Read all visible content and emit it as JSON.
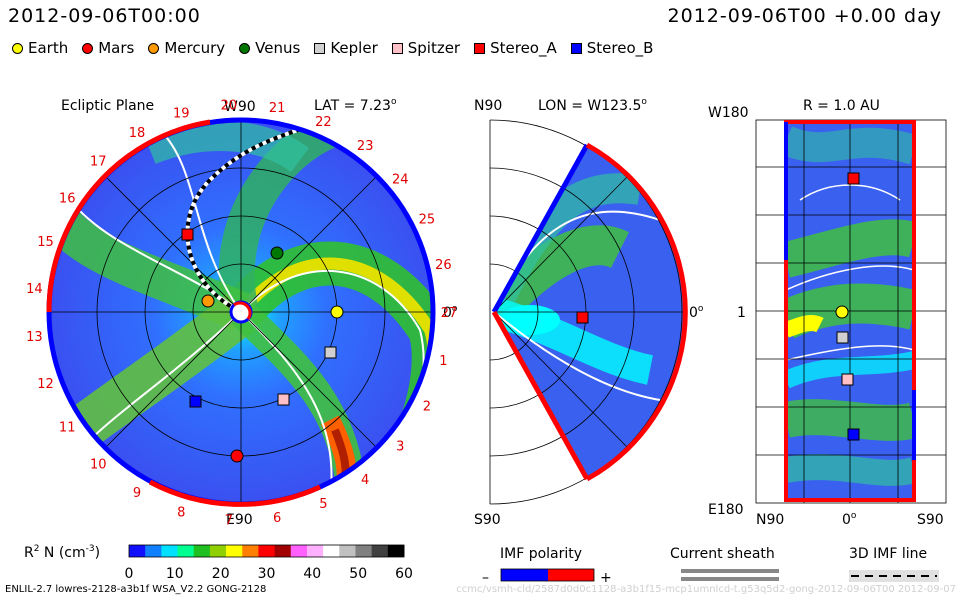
{
  "header": {
    "timestamp_left": "2012-09-06T00:00",
    "timestamp_right": "2012-09-06T00 +0.00 day"
  },
  "legend": [
    {
      "label": "Earth",
      "color": "#ffff00",
      "shape": "circle"
    },
    {
      "label": "Mars",
      "color": "#ff0000",
      "shape": "circle"
    },
    {
      "label": "Mercury",
      "color": "#ff9900",
      "shape": "circle"
    },
    {
      "label": "Venus",
      "color": "#007700",
      "shape": "circle"
    },
    {
      "label": "Kepler",
      "color": "#d0d0d0",
      "shape": "square"
    },
    {
      "label": "Spitzer",
      "color": "#ffc0c8",
      "shape": "square"
    },
    {
      "label": "Stereo_A",
      "color": "#ff0000",
      "shape": "square"
    },
    {
      "label": "Stereo_B",
      "color": "#0000ff",
      "shape": "square"
    }
  ],
  "panels": {
    "ecliptic": {
      "title": "Ecliptic Plane",
      "lat_label": "LAT = 7.23",
      "degree_mark": "o",
      "top_label": "W90",
      "bottom_label": "E90",
      "right_label": "0",
      "rotation_numbers": [
        "1",
        "2",
        "3",
        "4",
        "5",
        "6",
        "7",
        "8",
        "9",
        "10",
        "11",
        "12",
        "13",
        "14",
        "15",
        "16",
        "17",
        "18",
        "19",
        "20",
        "21",
        "22",
        "23",
        "24",
        "25",
        "26",
        "27"
      ]
    },
    "meridional": {
      "lon_label": "LON = W123.5",
      "top_label": "N90",
      "bottom_label": "S90",
      "right_label": "0"
    },
    "radial": {
      "r_label": "R = 1.0 AU",
      "top_left_label": "W180",
      "bottom_left_label": "E180",
      "mid_left_label": "1",
      "bottom_axis": [
        "N90",
        "0",
        "S90"
      ]
    }
  },
  "colorbar": {
    "label": "R  N (cm  )",
    "label_sup1": "2",
    "label_sup2": "-3",
    "ticks": [
      "0",
      "10",
      "20",
      "30",
      "40",
      "50",
      "60"
    ],
    "colors": [
      "#1010ff",
      "#1080ff",
      "#00e0ff",
      "#00ff90",
      "#20c020",
      "#90d000",
      "#ffff00",
      "#ff8000",
      "#ff0000",
      "#a00000",
      "#ff60ff",
      "#ffb0ff",
      "#ffffff",
      "#c0c0c0",
      "#808080",
      "#404040",
      "#000000"
    ]
  },
  "imf_polarity": {
    "label": "IMF polarity",
    "minus": "–",
    "plus": "+",
    "negative_color": "#0000ff",
    "positive_color": "#ff0000"
  },
  "current_sheath": {
    "label": "Current sheath"
  },
  "imf_line": {
    "label": "3D IMF line"
  },
  "footer": {
    "left": "ENLIL-2.7 lowres-2128-a3b1f WSA_V2.2 GONG-2128",
    "right": "ccmc/vsmh-cld/2587d0d0c1128-a3b1f15-mcp1umnlcd-t.g53q5d2-gong-2012-09-06T00 2012-09-07"
  },
  "chart_data": {
    "type": "heatmap",
    "title": "",
    "timestamp": "2012-09-06T00:00",
    "bodies": [
      {
        "name": "Earth"
      },
      {
        "name": "Mars"
      },
      {
        "name": "Mercury"
      },
      {
        "name": "Venus"
      },
      {
        "name": "Kepler"
      },
      {
        "name": "Spitzer"
      },
      {
        "name": "Stereo_A"
      },
      {
        "name": "Stereo_B"
      }
    ],
    "colorbar": {
      "quantity": "R2 N",
      "unit": "cm-3",
      "range": [
        0,
        60
      ]
    }
  }
}
